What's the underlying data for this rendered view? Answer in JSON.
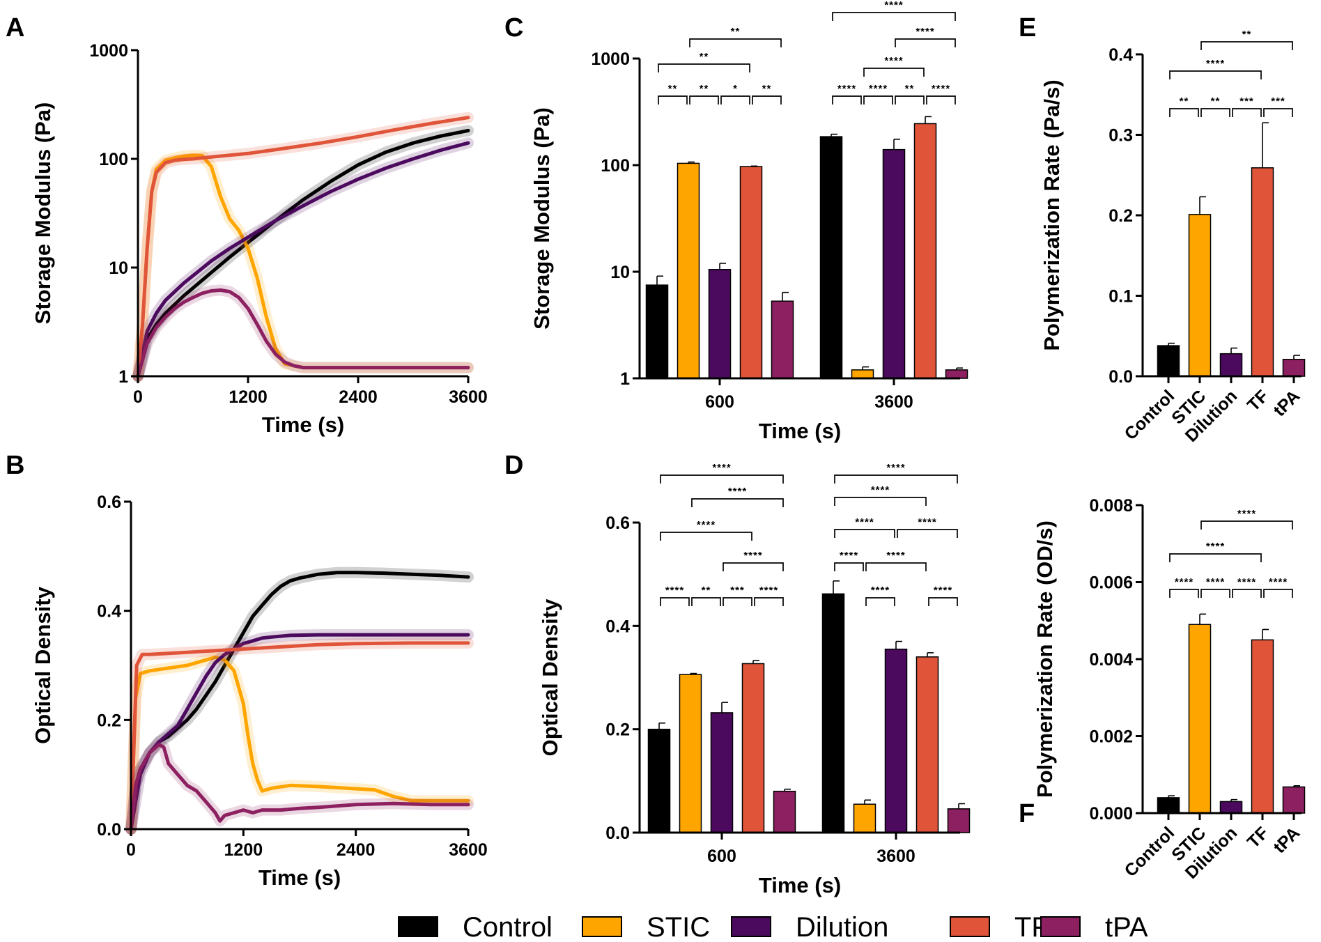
{
  "colors": {
    "Control": "#000000",
    "STIC": "#ffa500",
    "Dilution": "#4b0a5e",
    "TF": "#e0553a",
    "tPA": "#8c2060"
  },
  "legend": [
    "Control",
    "STIC",
    "Dilution",
    "TF",
    "tPA"
  ],
  "panel_letters": [
    "A",
    "B",
    "C",
    "D",
    "E",
    "F"
  ],
  "chart_data": [
    {
      "id": "A",
      "type": "line",
      "xlabel": "Time (s)",
      "ylabel": "Storage Modulus (Pa)",
      "yscale": "log",
      "xlim": [
        0,
        3600
      ],
      "ylim": [
        1,
        1000
      ],
      "xticks": [
        "0",
        "1200",
        "2400",
        "3600"
      ],
      "yticks": [
        "1",
        "10",
        "100",
        "1000"
      ],
      "series": [
        {
          "name": "Control",
          "x": [
            0,
            100,
            200,
            300,
            500,
            800,
            1000,
            1200,
            1500,
            1800,
            2100,
            2400,
            2700,
            3000,
            3300,
            3600
          ],
          "y": [
            1,
            2.2,
            3,
            3.8,
            5.5,
            9,
            12.5,
            17,
            27,
            42,
            62,
            88,
            115,
            140,
            162,
            182
          ]
        },
        {
          "name": "STIC",
          "x": [
            0,
            50,
            100,
            150,
            200,
            300,
            400,
            500,
            600,
            700,
            800,
            900,
            1000,
            1100,
            1200,
            1300,
            1400,
            1500,
            1600,
            1700,
            1800,
            2000,
            2400,
            3000,
            3600
          ],
          "y": [
            1,
            3,
            15,
            50,
            80,
            97,
            102,
            106,
            108,
            107,
            85,
            45,
            28,
            22,
            15,
            8,
            3.5,
            1.8,
            1.3,
            1.25,
            1.2,
            1.2,
            1.2,
            1.2,
            1.2
          ]
        },
        {
          "name": "Dilution",
          "x": [
            0,
            100,
            200,
            300,
            500,
            800,
            1000,
            1200,
            1500,
            1800,
            2100,
            2400,
            2700,
            3000,
            3300,
            3600
          ],
          "y": [
            1,
            2.6,
            3.8,
            5,
            7.2,
            11.5,
            15,
            19,
            27,
            37,
            50,
            65,
            82,
            100,
            120,
            140
          ]
        },
        {
          "name": "TF",
          "x": [
            0,
            50,
            100,
            150,
            200,
            300,
            400,
            500,
            600,
            800,
            1200,
            1600,
            2000,
            2400,
            2800,
            3200,
            3600
          ],
          "y": [
            1,
            3,
            15,
            50,
            75,
            92,
            97,
            99,
            100,
            104,
            112,
            125,
            140,
            160,
            185,
            212,
            240
          ]
        },
        {
          "name": "tPA",
          "x": [
            0,
            100,
            200,
            300,
            400,
            500,
            600,
            700,
            800,
            900,
            1000,
            1100,
            1200,
            1300,
            1400,
            1500,
            1600,
            1700,
            1800,
            2000,
            2400,
            3000,
            3600
          ],
          "y": [
            1,
            2,
            2.8,
            3.5,
            4.2,
            4.8,
            5.3,
            5.8,
            6.1,
            6.2,
            6,
            5.3,
            4.2,
            3,
            2.1,
            1.6,
            1.35,
            1.25,
            1.2,
            1.2,
            1.2,
            1.2,
            1.2
          ]
        }
      ]
    },
    {
      "id": "B",
      "type": "line",
      "xlabel": "Time (s)",
      "ylabel": "Optical Density",
      "xlim": [
        0,
        3600
      ],
      "ylim": [
        0,
        0.6
      ],
      "xticks": [
        "0",
        "1200",
        "2400",
        "3600"
      ],
      "yticks": [
        "0.0",
        "0.2",
        "0.4",
        "0.6"
      ],
      "series": [
        {
          "name": "Control",
          "x": [
            0,
            50,
            100,
            200,
            300,
            400,
            500,
            600,
            700,
            800,
            900,
            1000,
            1100,
            1200,
            1300,
            1400,
            1500,
            1600,
            1700,
            1800,
            2000,
            2200,
            2400,
            2700,
            3000,
            3300,
            3600
          ],
          "y": [
            0,
            0.08,
            0.11,
            0.14,
            0.16,
            0.17,
            0.185,
            0.2,
            0.22,
            0.245,
            0.27,
            0.3,
            0.33,
            0.36,
            0.39,
            0.41,
            0.43,
            0.445,
            0.455,
            0.46,
            0.467,
            0.47,
            0.47,
            0.469,
            0.467,
            0.465,
            0.462
          ]
        },
        {
          "name": "STIC",
          "x": [
            0,
            50,
            100,
            200,
            400,
            600,
            800,
            900,
            1000,
            1100,
            1200,
            1250,
            1300,
            1350,
            1400,
            1500,
            1700,
            2000,
            2300,
            2600,
            2800,
            3000,
            3600
          ],
          "y": [
            0,
            0.24,
            0.285,
            0.29,
            0.295,
            0.3,
            0.31,
            0.315,
            0.31,
            0.29,
            0.23,
            0.17,
            0.12,
            0.09,
            0.07,
            0.075,
            0.08,
            0.078,
            0.075,
            0.072,
            0.06,
            0.052,
            0.052
          ]
        },
        {
          "name": "Dilution",
          "x": [
            0,
            100,
            200,
            300,
            400,
            500,
            600,
            700,
            800,
            900,
            1000,
            1100,
            1200,
            1300,
            1400,
            1500,
            1700,
            2000,
            2400,
            3000,
            3600
          ],
          "y": [
            0,
            0.1,
            0.14,
            0.16,
            0.175,
            0.19,
            0.22,
            0.25,
            0.28,
            0.305,
            0.32,
            0.33,
            0.34,
            0.345,
            0.35,
            0.352,
            0.355,
            0.356,
            0.356,
            0.356,
            0.356
          ]
        },
        {
          "name": "TF",
          "x": [
            0,
            60,
            120,
            200,
            400,
            800,
            1200,
            1600,
            2000,
            2400,
            3000,
            3600
          ],
          "y": [
            0,
            0.3,
            0.32,
            0.32,
            0.322,
            0.326,
            0.33,
            0.334,
            0.338,
            0.34,
            0.341,
            0.341
          ]
        },
        {
          "name": "tPA",
          "x": [
            0,
            50,
            100,
            200,
            300,
            350,
            400,
            500,
            600,
            700,
            800,
            900,
            950,
            1000,
            1100,
            1200,
            1300,
            1400,
            1600,
            1800,
            2000,
            2400,
            2800,
            3200,
            3600
          ],
          "y": [
            0,
            0.08,
            0.11,
            0.14,
            0.155,
            0.15,
            0.12,
            0.1,
            0.08,
            0.07,
            0.05,
            0.03,
            0.015,
            0.025,
            0.03,
            0.035,
            0.03,
            0.035,
            0.035,
            0.038,
            0.04,
            0.045,
            0.047,
            0.045,
            0.045
          ]
        }
      ]
    },
    {
      "id": "C",
      "type": "bar",
      "xlabel": "Time (s)",
      "ylabel": "Storage Modulus (Pa)",
      "yscale": "log",
      "ylim": [
        1,
        1000
      ],
      "categories": [
        "600",
        "3600"
      ],
      "yticks": [
        "1",
        "10",
        "100",
        "1000"
      ],
      "series": [
        {
          "name": "Control",
          "values": [
            7.5,
            185
          ],
          "errors": [
            1.6,
            10
          ]
        },
        {
          "name": "STIC",
          "values": [
            104,
            1.2
          ],
          "errors": [
            3,
            0.08
          ]
        },
        {
          "name": "Dilution",
          "values": [
            10.5,
            140
          ],
          "errors": [
            1.5,
            35
          ]
        },
        {
          "name": "TF",
          "values": [
            97,
            245
          ],
          "errors": [
            1,
            40
          ]
        },
        {
          "name": "tPA",
          "values": [
            5.3,
            1.2
          ],
          "errors": [
            1.1,
            0.05
          ]
        }
      ],
      "significance": [
        {
          "a": [
            0,
            1
          ],
          "b": [
            0,
            4
          ],
          "label": "**"
        },
        {
          "a": [
            0,
            0
          ],
          "b": [
            0,
            3
          ],
          "label": "**"
        },
        {
          "a": [
            0,
            0
          ],
          "b": [
            0,
            1
          ],
          "label": "**"
        },
        {
          "a": [
            0,
            1
          ],
          "b": [
            0,
            2
          ],
          "label": "**"
        },
        {
          "a": [
            0,
            2
          ],
          "b": [
            0,
            3
          ],
          "label": "*"
        },
        {
          "a": [
            0,
            3
          ],
          "b": [
            0,
            4
          ],
          "label": "**"
        },
        {
          "a": [
            1,
            0
          ],
          "b": [
            1,
            4
          ],
          "label": "****"
        },
        {
          "a": [
            1,
            2
          ],
          "b": [
            1,
            4
          ],
          "label": "****"
        },
        {
          "a": [
            1,
            1
          ],
          "b": [
            1,
            3
          ],
          "label": "****"
        },
        {
          "a": [
            1,
            0
          ],
          "b": [
            1,
            1
          ],
          "label": "****"
        },
        {
          "a": [
            1,
            1
          ],
          "b": [
            1,
            2
          ],
          "label": "****"
        },
        {
          "a": [
            1,
            2
          ],
          "b": [
            1,
            3
          ],
          "label": "**"
        },
        {
          "a": [
            1,
            3
          ],
          "b": [
            1,
            4
          ],
          "label": "****"
        }
      ]
    },
    {
      "id": "D",
      "type": "bar",
      "xlabel": "Time (s)",
      "ylabel": "Optical  Density",
      "ylim": [
        0,
        0.6
      ],
      "categories": [
        "600",
        "3600"
      ],
      "yticks": [
        "0.0",
        "0.2",
        "0.4",
        "0.6"
      ],
      "series": [
        {
          "name": "Control",
          "values": [
            0.2,
            0.462
          ],
          "errors": [
            0.012,
            0.025
          ]
        },
        {
          "name": "STIC",
          "values": [
            0.306,
            0.055
          ],
          "errors": [
            0.002,
            0.008
          ]
        },
        {
          "name": "Dilution",
          "values": [
            0.232,
            0.355
          ],
          "errors": [
            0.02,
            0.015
          ]
        },
        {
          "name": "TF",
          "values": [
            0.327,
            0.34
          ],
          "errors": [
            0.006,
            0.008
          ]
        },
        {
          "name": "tPA",
          "values": [
            0.08,
            0.046
          ],
          "errors": [
            0.004,
            0.01
          ]
        }
      ],
      "significance": [
        {
          "a": [
            0,
            0
          ],
          "b": [
            0,
            4
          ],
          "label": "****"
        },
        {
          "a": [
            0,
            1
          ],
          "b": [
            0,
            4
          ],
          "label": "****"
        },
        {
          "a": [
            0,
            0
          ],
          "b": [
            0,
            3
          ],
          "label": "****"
        },
        {
          "a": [
            0,
            2
          ],
          "b": [
            0,
            4
          ],
          "label": "****"
        },
        {
          "a": [
            0,
            0
          ],
          "b": [
            0,
            1
          ],
          "label": "****"
        },
        {
          "a": [
            0,
            1
          ],
          "b": [
            0,
            2
          ],
          "label": "**"
        },
        {
          "a": [
            0,
            2
          ],
          "b": [
            0,
            3
          ],
          "label": "***"
        },
        {
          "a": [
            0,
            3
          ],
          "b": [
            0,
            4
          ],
          "label": "****"
        },
        {
          "a": [
            1,
            0
          ],
          "b": [
            1,
            4
          ],
          "label": "****"
        },
        {
          "a": [
            1,
            0
          ],
          "b": [
            1,
            3
          ],
          "label": "****"
        },
        {
          "a": [
            1,
            0
          ],
          "b": [
            1,
            2
          ],
          "label": "****"
        },
        {
          "a": [
            1,
            2
          ],
          "b": [
            1,
            4
          ],
          "label": "****"
        },
        {
          "a": [
            1,
            0
          ],
          "b": [
            1,
            1
          ],
          "label": "****"
        },
        {
          "a": [
            1,
            1
          ],
          "b": [
            1,
            3
          ],
          "label": "****"
        },
        {
          "a": [
            1,
            1
          ],
          "b": [
            1,
            2
          ],
          "label": "****"
        },
        {
          "a": [
            1,
            3
          ],
          "b": [
            1,
            4
          ],
          "label": "****"
        }
      ]
    },
    {
      "id": "E",
      "type": "bar",
      "ylabel": "Polymerization Rate (Pa/s)",
      "ylim": [
        0,
        0.4
      ],
      "categories": [
        "Control",
        "STIC",
        "Dilution",
        "TF",
        "tPA"
      ],
      "yticks": [
        "0.0",
        "0.1",
        "0.2",
        "0.3",
        "0.4"
      ],
      "values": [
        0.038,
        0.201,
        0.028,
        0.259,
        0.021
      ],
      "errors": [
        0.003,
        0.022,
        0.007,
        0.056,
        0.005
      ],
      "significance": [
        {
          "a": 1,
          "b": 4,
          "label": "**"
        },
        {
          "a": 0,
          "b": 3,
          "label": "****"
        },
        {
          "a": 0,
          "b": 1,
          "label": "**"
        },
        {
          "a": 1,
          "b": 2,
          "label": "**"
        },
        {
          "a": 2,
          "b": 3,
          "label": "***"
        },
        {
          "a": 3,
          "b": 4,
          "label": "***"
        }
      ]
    },
    {
      "id": "F",
      "type": "bar",
      "ylabel": "Polymerization  Rate (OD/s)",
      "ylim": [
        0,
        0.008
      ],
      "categories": [
        "Control",
        "STIC",
        "Dilution",
        "TF",
        "tPA"
      ],
      "yticks": [
        "0.000",
        "0.002",
        "0.004",
        "0.006",
        "0.008"
      ],
      "values": [
        0.0004,
        0.0049,
        0.0003,
        0.0045,
        0.00068
      ],
      "errors": [
        5e-05,
        0.00027,
        5e-05,
        0.00027,
        3e-05
      ],
      "significance": [
        {
          "a": 1,
          "b": 4,
          "label": "****"
        },
        {
          "a": 0,
          "b": 3,
          "label": "****"
        },
        {
          "a": 0,
          "b": 1,
          "label": "****"
        },
        {
          "a": 1,
          "b": 2,
          "label": "****"
        },
        {
          "a": 2,
          "b": 3,
          "label": "****"
        },
        {
          "a": 3,
          "b": 4,
          "label": "****"
        }
      ]
    }
  ]
}
